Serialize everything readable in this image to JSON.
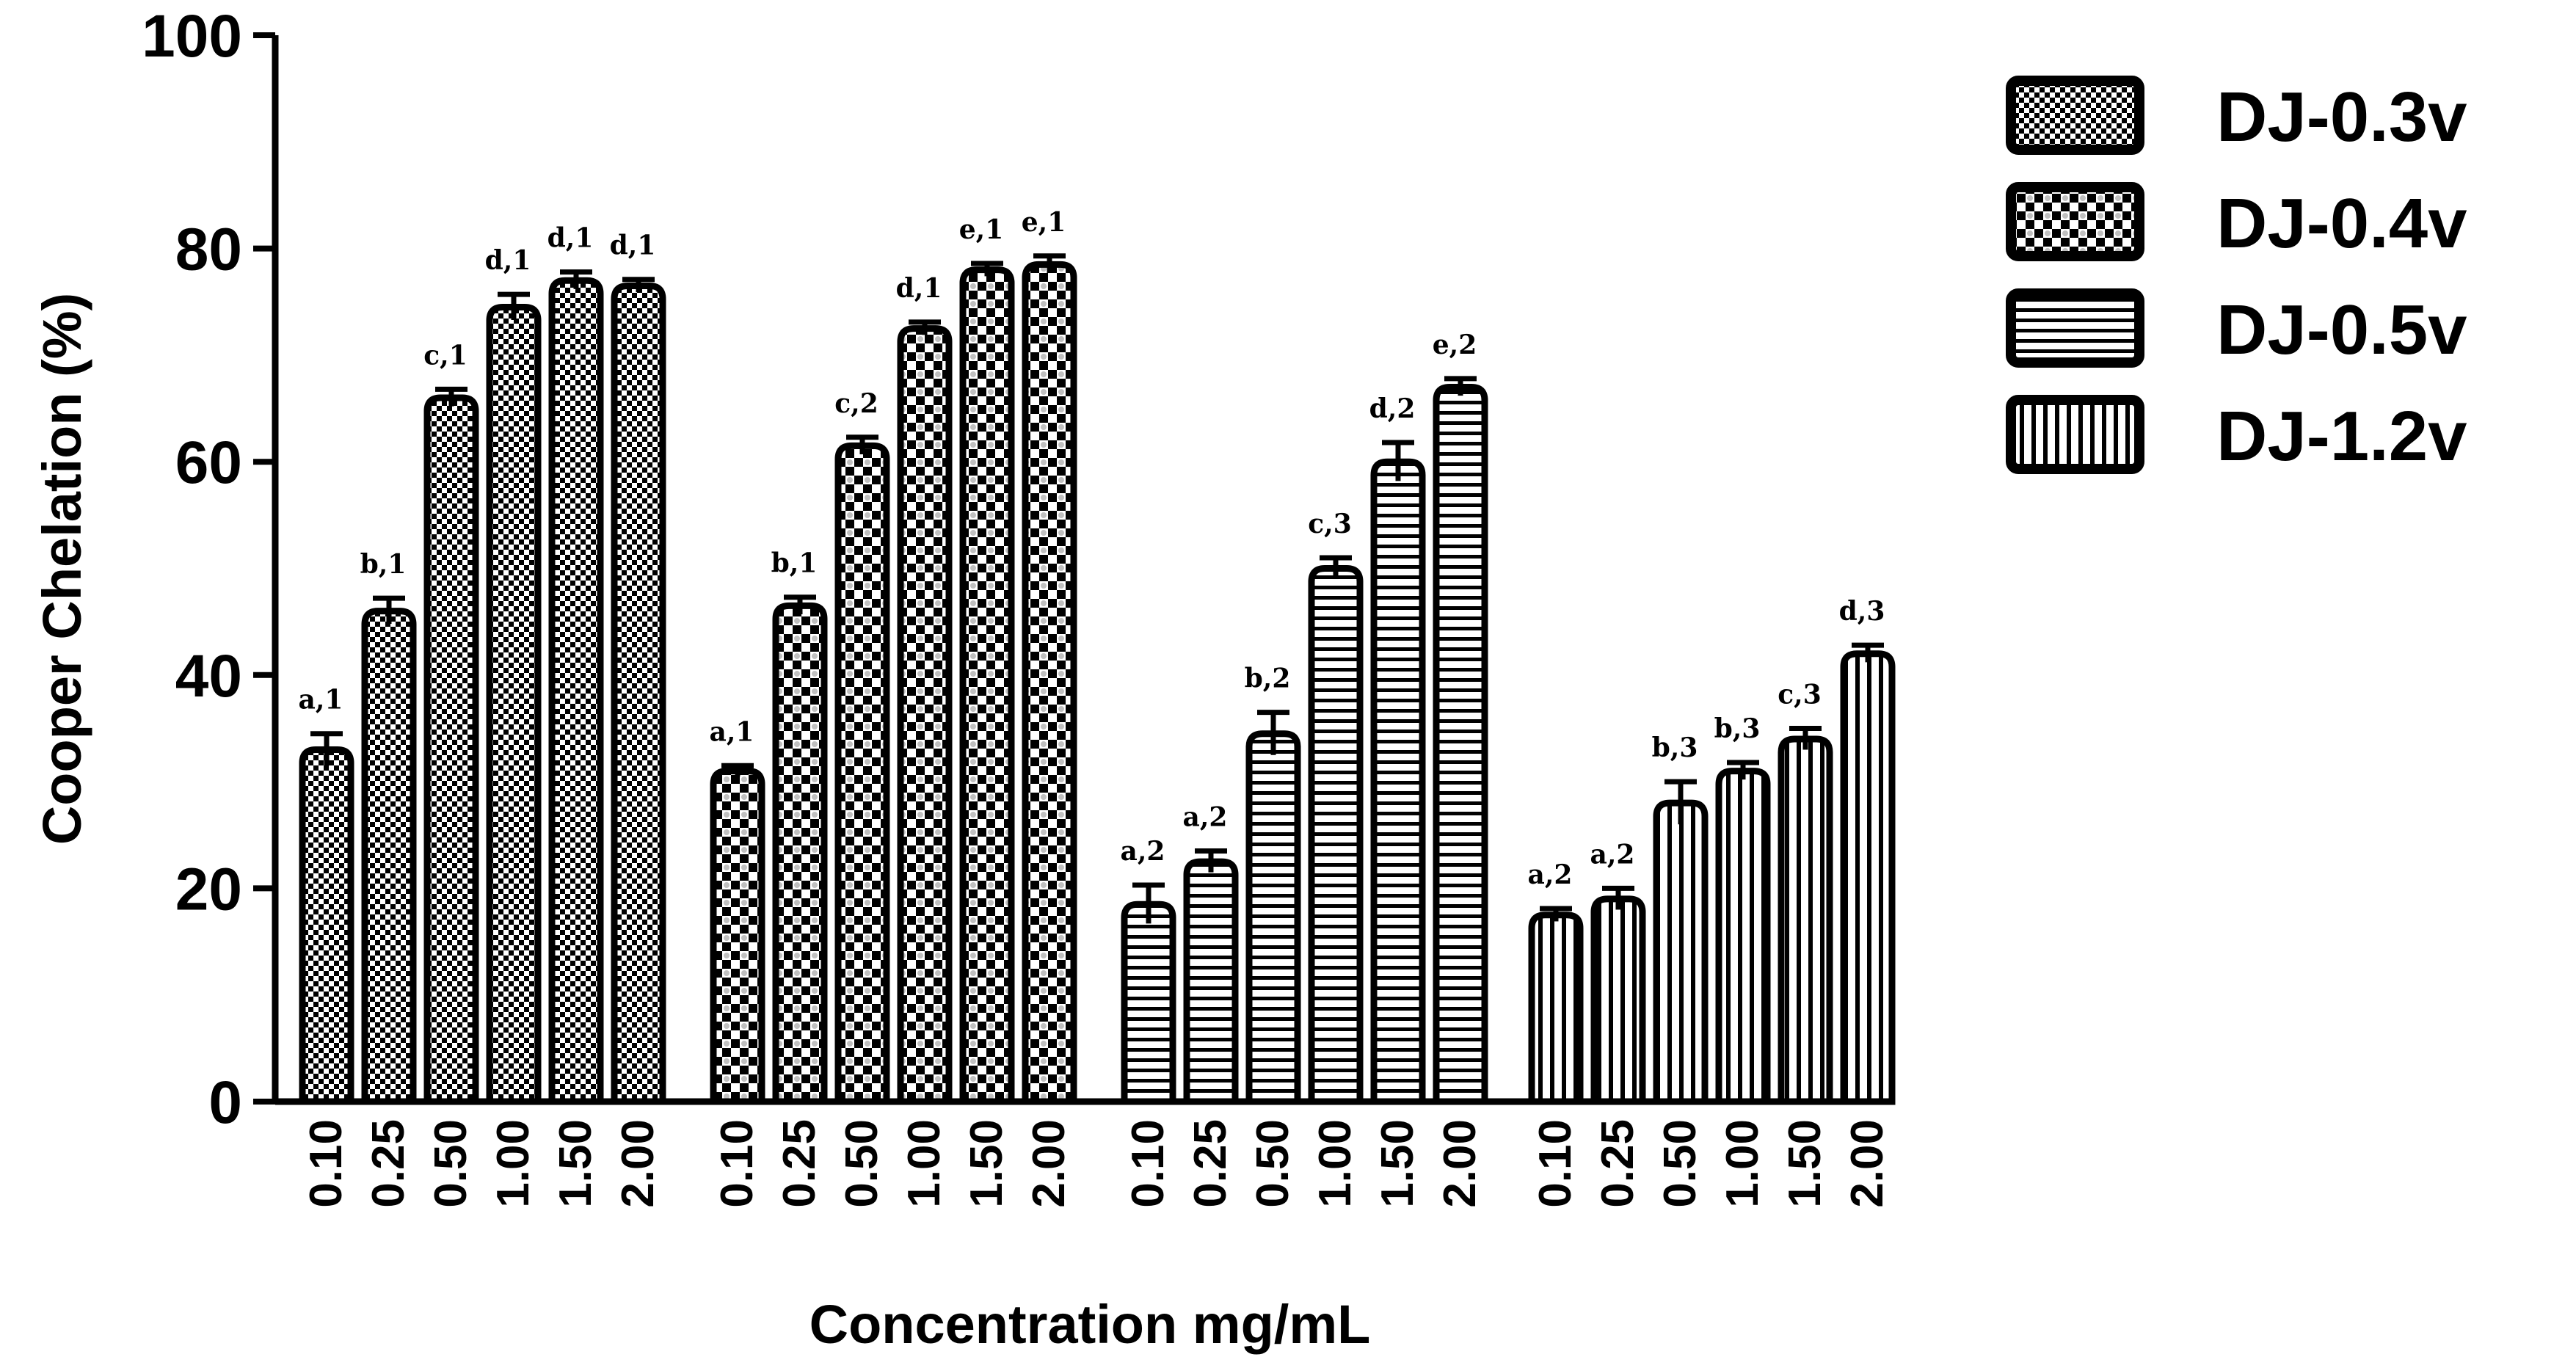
{
  "chart_data": {
    "type": "bar",
    "title": "",
    "ylabel": "Cooper Chelation (%)",
    "xlabel": "Concentration mg/mL",
    "ylim": [
      0,
      100
    ],
    "yticks": [
      0,
      20,
      40,
      60,
      80,
      100
    ],
    "grid": false,
    "legend_position": "top-right",
    "categories": [
      "0.10",
      "0.25",
      "0.50",
      "1.00",
      "1.50",
      "2.00"
    ],
    "series": [
      {
        "name": "DJ-0.3v",
        "pattern": "checker-fine",
        "values": [
          33,
          46,
          66,
          74.5,
          77,
          76.5
        ],
        "errors": [
          1.5,
          1.2,
          0.8,
          1.2,
          0.8,
          0.6
        ],
        "labels": [
          "a,1",
          "b,1",
          "c,1",
          "d,1",
          "d,1",
          "d,1"
        ]
      },
      {
        "name": "DJ-0.4v",
        "pattern": "checker-coarse",
        "values": [
          31,
          46.5,
          61.5,
          72.5,
          78,
          78.5
        ],
        "errors": [
          0.5,
          0.8,
          0.8,
          0.6,
          0.6,
          0.8
        ],
        "labels": [
          "a,1",
          "b,1",
          "c,2",
          "d,1",
          "e,1",
          "e,1"
        ]
      },
      {
        "name": "DJ-0.5v",
        "pattern": "horizontal-lines",
        "values": [
          18.5,
          22.5,
          34.5,
          50,
          60,
          67
        ],
        "errors": [
          1.8,
          1.0,
          2.0,
          1.0,
          1.8,
          0.8
        ],
        "labels": [
          "a,2",
          "a,2",
          "b,2",
          "c,3",
          "d,2",
          "e,2"
        ]
      },
      {
        "name": "DJ-1.2v",
        "pattern": "vertical-lines",
        "values": [
          17.5,
          19,
          28,
          31,
          34,
          42
        ],
        "errors": [
          0.6,
          1.0,
          2.0,
          0.8,
          1.0,
          0.8
        ],
        "labels": [
          "a,2",
          "a,2",
          "b,3",
          "b,3",
          "c,3",
          "d,3"
        ]
      }
    ]
  }
}
